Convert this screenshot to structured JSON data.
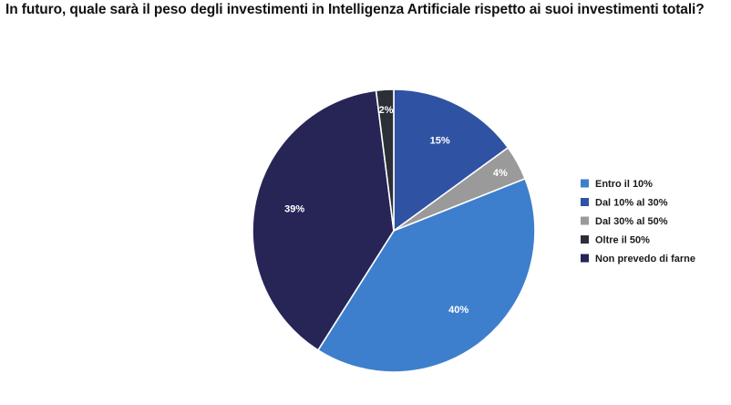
{
  "chart_data": {
    "type": "pie",
    "title": "In futuro, quale sarà il peso degli investimenti in Intelligenza Artificiale rispetto ai suoi investimenti totali?",
    "legend_position": "right",
    "start_angle_deg": 0,
    "direction": "clockwise",
    "slices": [
      {
        "label": "Dal 10% al 30%",
        "value": 15,
        "data_label": "15%",
        "color": "#2f52a3"
      },
      {
        "label": "Dal 30% al 50%",
        "value": 4,
        "data_label": "4%",
        "color": "#9a9a9a"
      },
      {
        "label": "Entro il 10%",
        "value": 40,
        "data_label": "40%",
        "color": "#3d7fcd"
      },
      {
        "label": "Non prevedo di farne",
        "value": 39,
        "data_label": "39%",
        "color": "#262556"
      },
      {
        "label": "Oltre il 50%",
        "value": 2,
        "data_label": "2%",
        "color": "#2b2f36"
      }
    ],
    "legend": [
      {
        "label": "Entro il 10%",
        "color": "#3d7fcd"
      },
      {
        "label": "Dal 10% al 30%",
        "color": "#2f52a3"
      },
      {
        "label": "Dal 30% al 50%",
        "color": "#9a9a9a"
      },
      {
        "label": "Oltre il 50%",
        "color": "#2b2f36"
      },
      {
        "label": "Non prevedo di farne",
        "color": "#262556"
      }
    ]
  }
}
